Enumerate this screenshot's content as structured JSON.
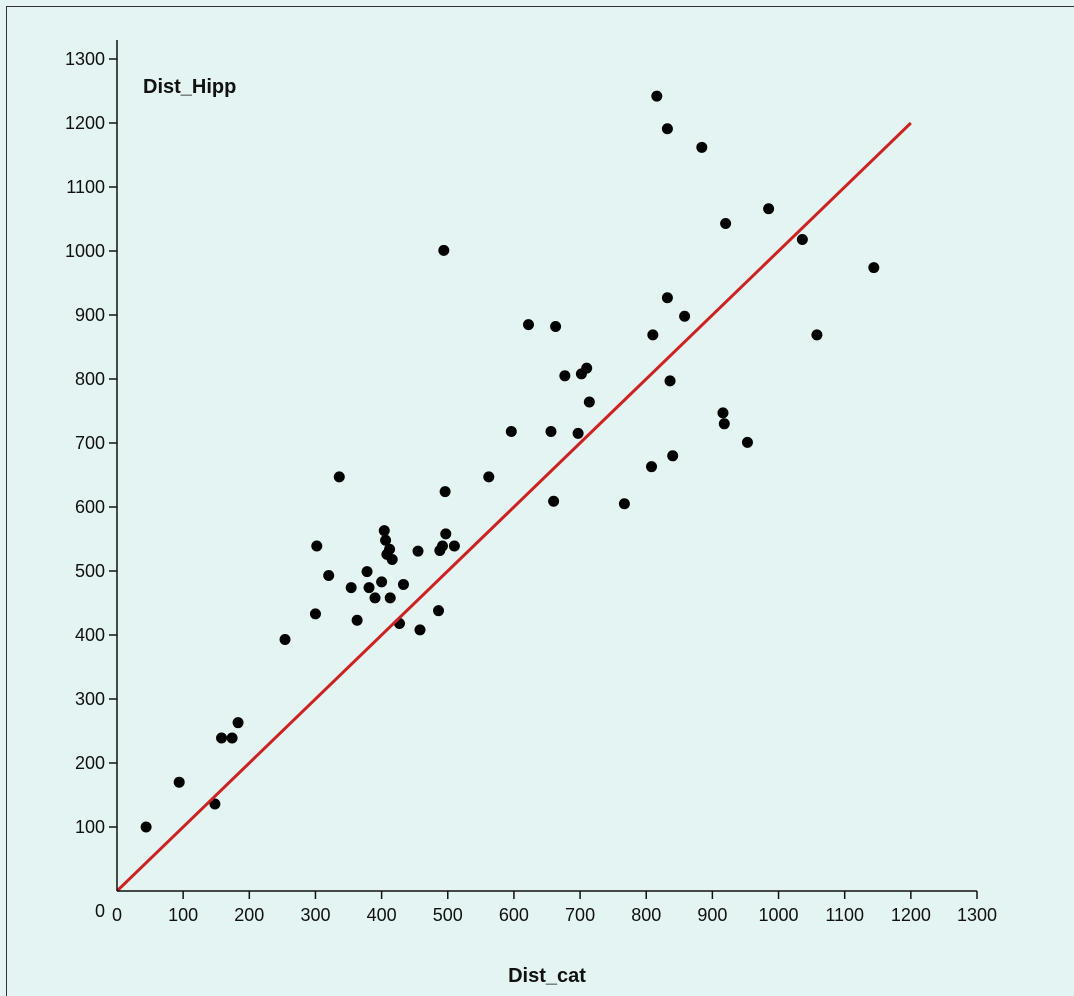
{
  "chart_data": {
    "type": "scatter",
    "title": "",
    "xlabel": "Dist_cat",
    "ylabel": "Dist_Hipp",
    "xlim": [
      0,
      1300
    ],
    "ylim": [
      0,
      1300
    ],
    "x_ticks": [
      "0",
      "100",
      "200",
      "300",
      "400",
      "500",
      "600",
      "700",
      "800",
      "900",
      "1000",
      "1100",
      "1200",
      "1300"
    ],
    "y_ticks": [
      "0",
      "100",
      "200",
      "300",
      "400",
      "500",
      "600",
      "700",
      "800",
      "900",
      "1000",
      "1100",
      "1200",
      "1300"
    ],
    "grid": false,
    "colors": {
      "points": "#000000",
      "fit_line": "#cc2222",
      "background": "#e3f4f2"
    },
    "fit_line": {
      "x": [
        0,
        1200
      ],
      "y": [
        0,
        1200
      ]
    },
    "points": [
      {
        "x": 44,
        "y": 100
      },
      {
        "x": 94,
        "y": 170
      },
      {
        "x": 148,
        "y": 136
      },
      {
        "x": 158,
        "y": 239
      },
      {
        "x": 174,
        "y": 239
      },
      {
        "x": 183,
        "y": 263
      },
      {
        "x": 254,
        "y": 393
      },
      {
        "x": 302,
        "y": 539
      },
      {
        "x": 300,
        "y": 433
      },
      {
        "x": 320,
        "y": 493
      },
      {
        "x": 336,
        "y": 647
      },
      {
        "x": 354,
        "y": 474
      },
      {
        "x": 363,
        "y": 423
      },
      {
        "x": 378,
        "y": 499
      },
      {
        "x": 381,
        "y": 474
      },
      {
        "x": 390,
        "y": 458
      },
      {
        "x": 400,
        "y": 483
      },
      {
        "x": 404,
        "y": 563
      },
      {
        "x": 406,
        "y": 548
      },
      {
        "x": 408,
        "y": 526
      },
      {
        "x": 412,
        "y": 534
      },
      {
        "x": 413,
        "y": 458
      },
      {
        "x": 416,
        "y": 518
      },
      {
        "x": 427,
        "y": 418
      },
      {
        "x": 433,
        "y": 479
      },
      {
        "x": 455,
        "y": 531
      },
      {
        "x": 458,
        "y": 408
      },
      {
        "x": 486,
        "y": 438
      },
      {
        "x": 488,
        "y": 532
      },
      {
        "x": 492,
        "y": 539
      },
      {
        "x": 496,
        "y": 624
      },
      {
        "x": 497,
        "y": 558
      },
      {
        "x": 510,
        "y": 539
      },
      {
        "x": 494,
        "y": 1001
      },
      {
        "x": 562,
        "y": 647
      },
      {
        "x": 596,
        "y": 718
      },
      {
        "x": 622,
        "y": 885
      },
      {
        "x": 656,
        "y": 718
      },
      {
        "x": 660,
        "y": 609
      },
      {
        "x": 663,
        "y": 882
      },
      {
        "x": 677,
        "y": 805
      },
      {
        "x": 697,
        "y": 715
      },
      {
        "x": 702,
        "y": 808
      },
      {
        "x": 710,
        "y": 817
      },
      {
        "x": 714,
        "y": 764
      },
      {
        "x": 767,
        "y": 605
      },
      {
        "x": 808,
        "y": 663
      },
      {
        "x": 810,
        "y": 869
      },
      {
        "x": 816,
        "y": 1242
      },
      {
        "x": 832,
        "y": 1191
      },
      {
        "x": 832,
        "y": 927
      },
      {
        "x": 836,
        "y": 797
      },
      {
        "x": 840,
        "y": 680
      },
      {
        "x": 858,
        "y": 898
      },
      {
        "x": 884,
        "y": 1162
      },
      {
        "x": 916,
        "y": 747
      },
      {
        "x": 918,
        "y": 730
      },
      {
        "x": 920,
        "y": 1043
      },
      {
        "x": 953,
        "y": 701
      },
      {
        "x": 985,
        "y": 1066
      },
      {
        "x": 1036,
        "y": 1018
      },
      {
        "x": 1058,
        "y": 869
      },
      {
        "x": 1144,
        "y": 974
      }
    ]
  }
}
